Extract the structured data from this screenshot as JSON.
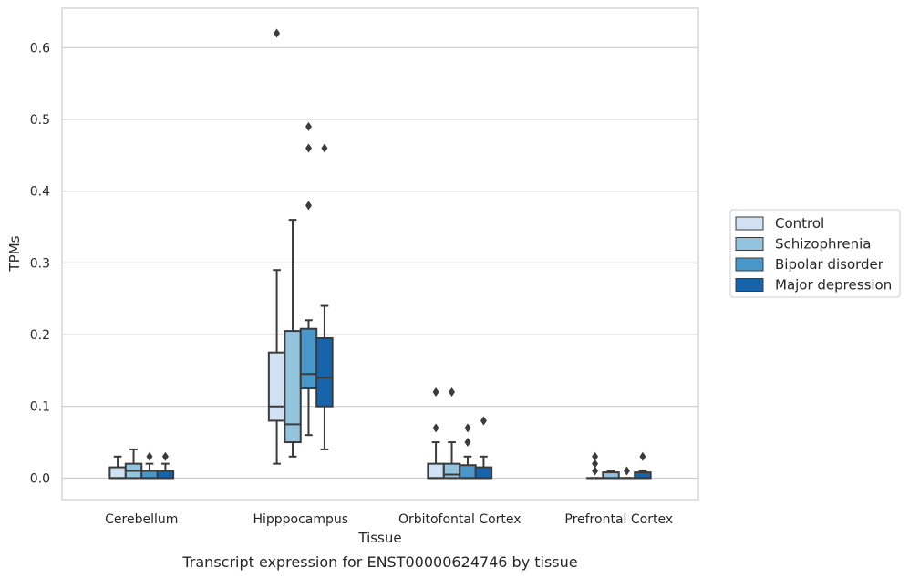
{
  "chart_data": {
    "type": "box",
    "title": "",
    "xlabel": "Tissue",
    "ylabel": "TPMs",
    "caption": "Transcript expression for ENST00000624746 by tissue",
    "ylim": [
      -0.03,
      0.655
    ],
    "yticks": [
      0.0,
      0.1,
      0.2,
      0.3,
      0.4,
      0.5,
      0.6
    ],
    "ytick_labels": [
      "0.0",
      "0.1",
      "0.2",
      "0.3",
      "0.4",
      "0.5",
      "0.6"
    ],
    "grid": "horizontal",
    "legend_position": "right",
    "categories": [
      "Cerebellum",
      "Hipppocampus",
      "Orbitofontal Cortex",
      "Prefrontal Cortex"
    ],
    "series": [
      {
        "name": "Control",
        "color": "#cfe1f2",
        "boxes": [
          {
            "whislo": 0.0,
            "q1": 0.0,
            "med": 0.0,
            "q3": 0.015,
            "whishi": 0.03,
            "fliers": []
          },
          {
            "whislo": 0.02,
            "q1": 0.08,
            "med": 0.1,
            "q3": 0.175,
            "whishi": 0.29,
            "fliers": [
              0.62
            ]
          },
          {
            "whislo": 0.0,
            "q1": 0.0,
            "med": 0.0,
            "q3": 0.02,
            "whishi": 0.05,
            "fliers": [
              0.07,
              0.12
            ]
          },
          {
            "whislo": 0.0,
            "q1": 0.0,
            "med": 0.0,
            "q3": 0.0,
            "whishi": 0.0,
            "fliers": [
              0.01,
              0.02,
              0.03
            ]
          }
        ]
      },
      {
        "name": "Schizophrenia",
        "color": "#93c4de",
        "boxes": [
          {
            "whislo": 0.0,
            "q1": 0.0,
            "med": 0.01,
            "q3": 0.02,
            "whishi": 0.04,
            "fliers": []
          },
          {
            "whislo": 0.03,
            "q1": 0.05,
            "med": 0.075,
            "q3": 0.205,
            "whishi": 0.36,
            "fliers": []
          },
          {
            "whislo": 0.0,
            "q1": 0.0,
            "med": 0.005,
            "q3": 0.02,
            "whishi": 0.05,
            "fliers": [
              0.12
            ]
          },
          {
            "whislo": 0.0,
            "q1": 0.0,
            "med": 0.0,
            "q3": 0.008,
            "whishi": 0.01,
            "fliers": []
          }
        ]
      },
      {
        "name": "Bipolar disorder",
        "color": "#4a98c9",
        "boxes": [
          {
            "whislo": 0.0,
            "q1": 0.0,
            "med": 0.0,
            "q3": 0.01,
            "whishi": 0.02,
            "fliers": [
              0.03
            ]
          },
          {
            "whislo": 0.06,
            "q1": 0.125,
            "med": 0.145,
            "q3": 0.208,
            "whishi": 0.22,
            "fliers": [
              0.38,
              0.46,
              0.49
            ]
          },
          {
            "whislo": 0.0,
            "q1": 0.0,
            "med": 0.0,
            "q3": 0.018,
            "whishi": 0.03,
            "fliers": [
              0.05,
              0.07
            ]
          },
          {
            "whislo": 0.0,
            "q1": 0.0,
            "med": 0.0,
            "q3": 0.0,
            "whishi": 0.0,
            "fliers": [
              0.01
            ]
          }
        ]
      },
      {
        "name": "Major depression",
        "color": "#1764ab",
        "boxes": [
          {
            "whislo": 0.0,
            "q1": 0.0,
            "med": 0.0,
            "q3": 0.01,
            "whishi": 0.02,
            "fliers": [
              0.03
            ]
          },
          {
            "whislo": 0.04,
            "q1": 0.1,
            "med": 0.14,
            "q3": 0.195,
            "whishi": 0.24,
            "fliers": [
              0.46
            ]
          },
          {
            "whislo": 0.0,
            "q1": 0.0,
            "med": 0.0,
            "q3": 0.015,
            "whishi": 0.03,
            "fliers": [
              0.08
            ]
          },
          {
            "whislo": 0.0,
            "q1": 0.0,
            "med": 0.0,
            "q3": 0.008,
            "whishi": 0.01,
            "fliers": [
              0.03
            ]
          }
        ]
      }
    ]
  }
}
